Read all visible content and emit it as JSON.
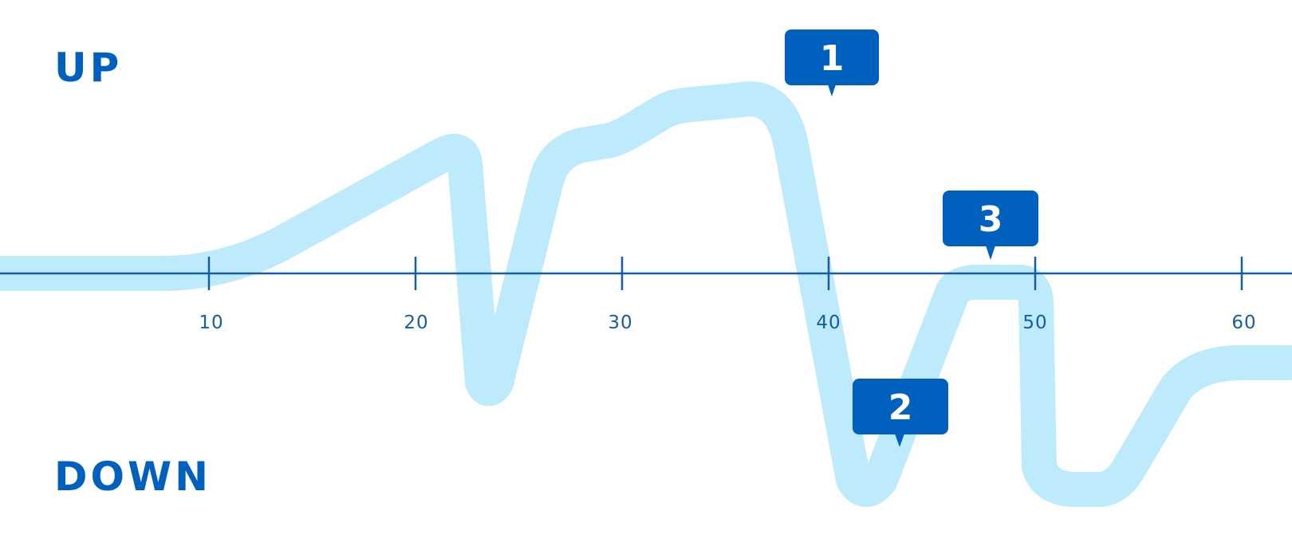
{
  "labels": {
    "up": "UP",
    "down": "DOWN"
  },
  "axis": {
    "ticks": [
      "10",
      "20",
      "30",
      "40",
      "50",
      "60"
    ]
  },
  "callouts": [
    "1",
    "2",
    "3"
  ],
  "colors": {
    "primary": "#0060BE",
    "axis": "#155EA5",
    "path": "#BEEBFB",
    "callout_text": "#FFFFFF"
  }
}
